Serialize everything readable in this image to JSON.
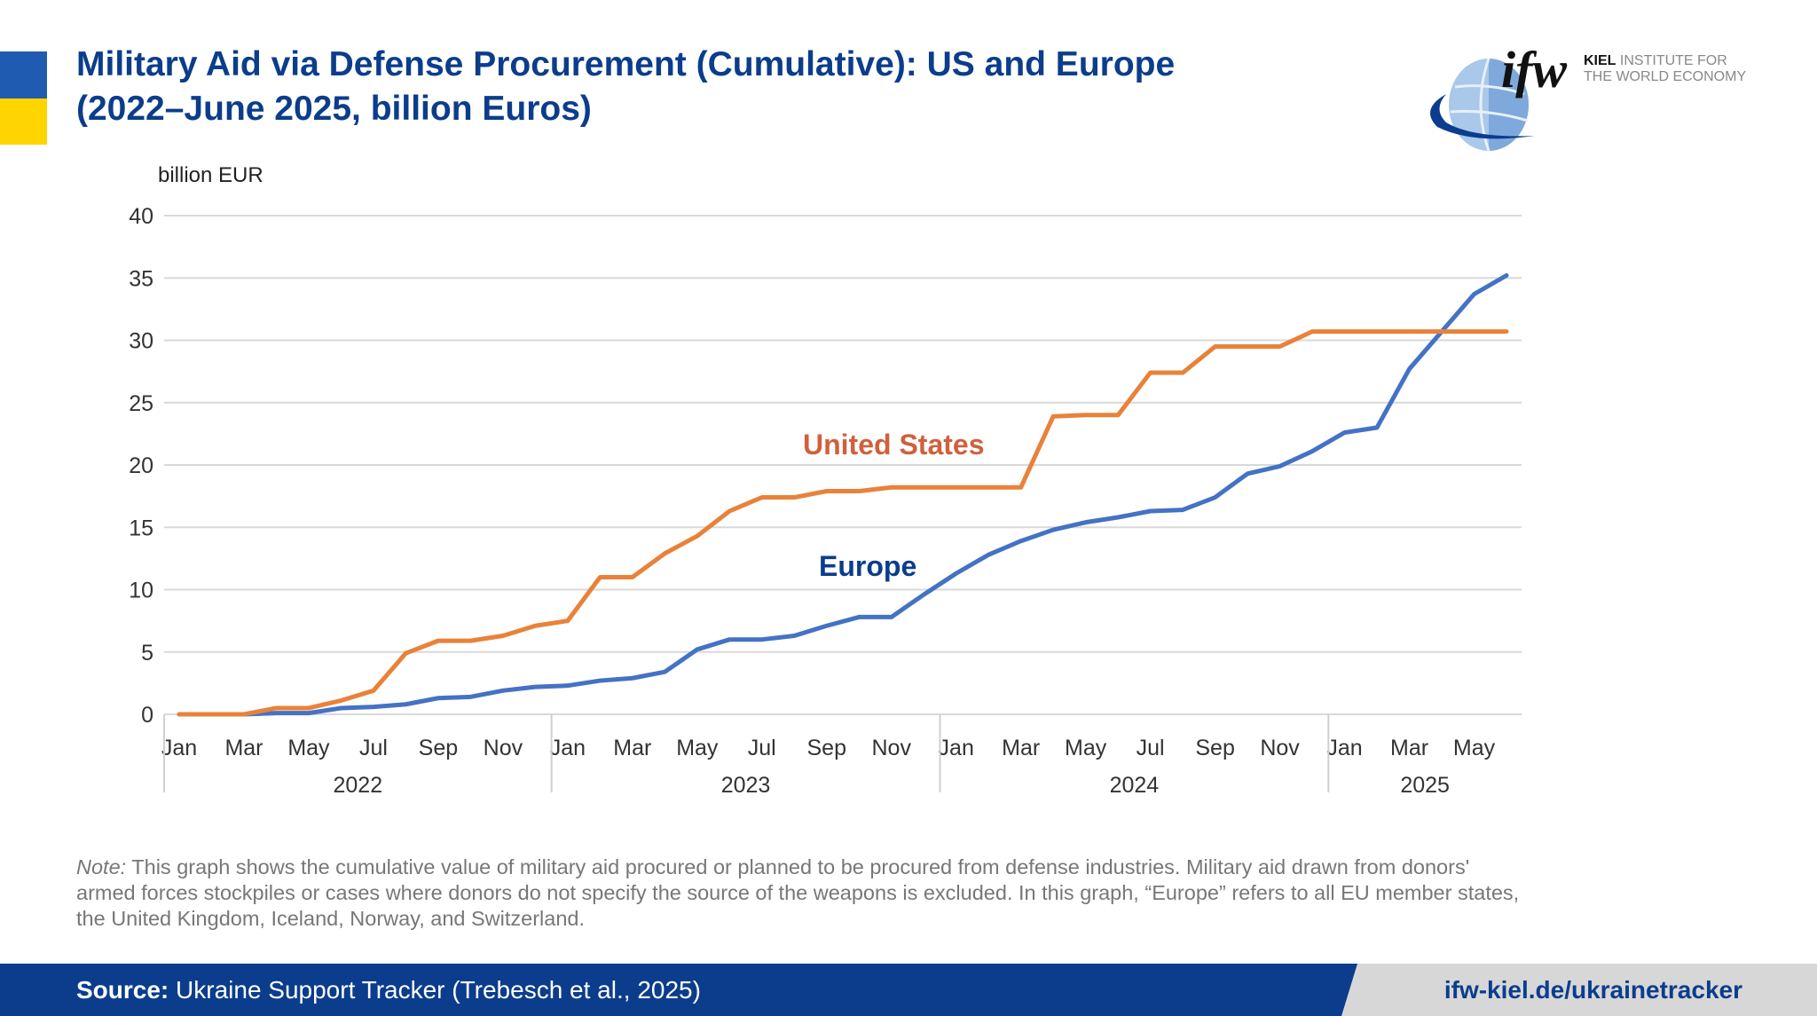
{
  "title_line1": "Military Aid via Defense Procurement (Cumulative): US and Europe",
  "title_line2": "(2022–June 2025, billion Euros)",
  "logo": {
    "mark": "ifw",
    "bold": "KIEL",
    "line1": "INSTITUTE FOR",
    "line2": "THE WORLD ECONOMY"
  },
  "colors": {
    "us": "#e8823a",
    "europe": "#4472c4",
    "us_label": "#d0603c",
    "europe_label": "#0b3d8c",
    "brand": "#0b3d8c",
    "flag_blue": "#1f5bb0",
    "flag_yellow": "#ffd500"
  },
  "chart_data": {
    "type": "line",
    "ylabel": "billion EUR",
    "ylim": [
      0,
      40
    ],
    "yticks": [
      0,
      5,
      10,
      15,
      20,
      25,
      30,
      35,
      40
    ],
    "grid": true,
    "x_tick_labels": [
      "Jan",
      "Mar",
      "May",
      "Jul",
      "Sep",
      "Nov",
      "Jan",
      "Mar",
      "May",
      "Jul",
      "Sep",
      "Nov",
      "Jan",
      "Mar",
      "May",
      "Jul",
      "Sep",
      "Nov",
      "Jan",
      "Mar",
      "May"
    ],
    "x_tick_months": [
      0,
      2,
      4,
      6,
      8,
      10,
      12,
      14,
      16,
      18,
      20,
      22,
      24,
      26,
      28,
      30,
      32,
      34,
      36,
      38,
      40
    ],
    "years": [
      "2022",
      "2023",
      "2024",
      "2025"
    ],
    "x": [
      "2022-01",
      "2022-02",
      "2022-03",
      "2022-04",
      "2022-05",
      "2022-06",
      "2022-07",
      "2022-08",
      "2022-09",
      "2022-10",
      "2022-11",
      "2022-12",
      "2023-01",
      "2023-02",
      "2023-03",
      "2023-04",
      "2023-05",
      "2023-06",
      "2023-07",
      "2023-08",
      "2023-09",
      "2023-10",
      "2023-11",
      "2023-12",
      "2024-01",
      "2024-02",
      "2024-03",
      "2024-04",
      "2024-05",
      "2024-06",
      "2024-07",
      "2024-08",
      "2024-09",
      "2024-10",
      "2024-11",
      "2024-12",
      "2025-01",
      "2025-02",
      "2025-03",
      "2025-04",
      "2025-05",
      "2025-06"
    ],
    "series": [
      {
        "name": "United States",
        "values": [
          0,
          0,
          0,
          0.5,
          0.5,
          1.1,
          1.9,
          4.9,
          5.9,
          5.9,
          6.3,
          7.1,
          7.5,
          11,
          11,
          12.9,
          14.3,
          16.3,
          17.4,
          17.4,
          17.9,
          17.9,
          18.2,
          18.2,
          18.2,
          18.2,
          18.2,
          23.9,
          24,
          24,
          27.4,
          27.4,
          29.5,
          29.5,
          29.5,
          30.7,
          30.7,
          30.7,
          30.7,
          30.7,
          30.7,
          30.7
        ]
      },
      {
        "name": "Europe",
        "values": [
          0,
          0,
          0,
          0.1,
          0.1,
          0.5,
          0.6,
          0.8,
          1.3,
          1.4,
          1.9,
          2.2,
          2.3,
          2.7,
          2.9,
          3.4,
          5.2,
          6.0,
          6.0,
          6.3,
          7.1,
          7.8,
          7.8,
          9.6,
          11.3,
          12.8,
          13.9,
          14.8,
          15.4,
          15.8,
          16.3,
          16.4,
          17.4,
          19.3,
          19.9,
          21.1,
          22.6,
          23.0,
          27.7,
          30.7,
          33.7,
          35.2
        ]
      }
    ]
  },
  "note_label": "Note:",
  "note_text": " This graph shows the cumulative value of military aid procured or planned to be procured from defense industries. Military aid drawn from donors' armed forces stockpiles or cases where donors do not specify the source of the weapons is excluded. In this graph, “Europe” refers to all EU member states, the United Kingdom, Iceland, Norway, and Switzerland.",
  "footer": {
    "source_label": "Source:",
    "source_text": " Ukraine Support Tracker (Trebesch et al., 2025)",
    "url": "ifw-kiel.de/ukrainetracker"
  }
}
